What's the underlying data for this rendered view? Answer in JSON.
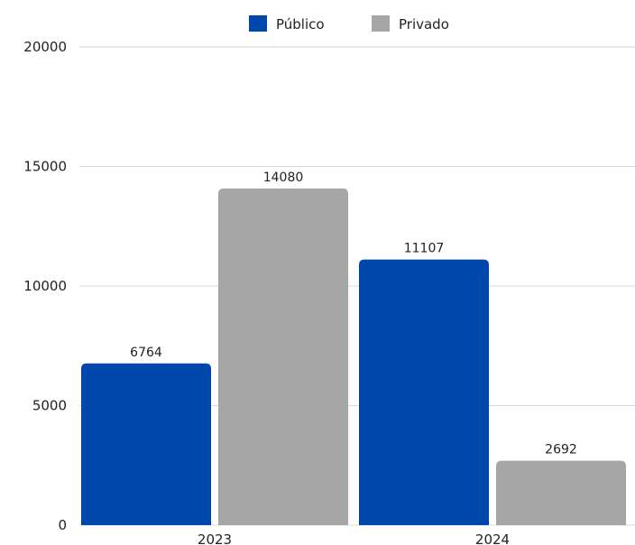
{
  "chart_data": {
    "type": "bar",
    "categories": [
      "2023",
      "2024"
    ],
    "series": [
      {
        "name": "Público",
        "values": [
          6764,
          11107
        ],
        "color": "#0047AB"
      },
      {
        "name": "Privado",
        "values": [
          14080,
          2692
        ],
        "color": "#A6A6A6"
      }
    ],
    "ylim": [
      0,
      20000
    ],
    "yticks": [
      0,
      5000,
      10000,
      15000,
      20000
    ],
    "grid": true,
    "legend_position": "top-center",
    "data_labels": true
  }
}
